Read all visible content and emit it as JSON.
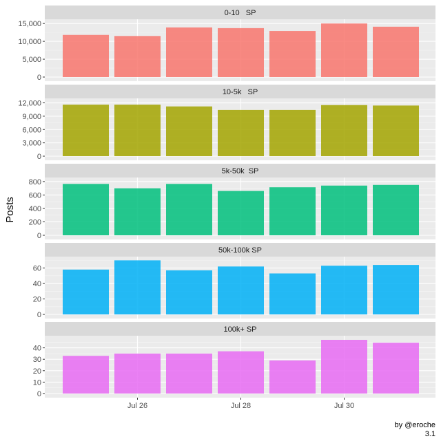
{
  "chart_data": {
    "type": "bar",
    "ylabel": "Posts",
    "x_ticks": [
      "Jul 26",
      "Jul 28",
      "Jul 30"
    ],
    "credit": "by @eroche",
    "version": "3.1",
    "panels": [
      {
        "strip": "0-10   SP",
        "color": "#F8766D",
        "values": [
          11800,
          11500,
          13900,
          13700,
          12900,
          15000,
          14100
        ],
        "ylim": [
          0,
          15800
        ],
        "ticks": [
          0,
          5000,
          10000,
          15000
        ],
        "tick_labels": [
          "0",
          "5,000",
          "10,000",
          "15,000"
        ]
      },
      {
        "strip": "10-5k   SP",
        "color": "#A3A500",
        "values": [
          11600,
          11600,
          11200,
          10400,
          10400,
          11500,
          11400
        ],
        "ylim": [
          0,
          12700
        ],
        "ticks": [
          0,
          3000,
          6000,
          9000,
          12000
        ],
        "tick_labels": [
          "0",
          "3,000",
          "6,000",
          "9,000",
          "12,000"
        ]
      },
      {
        "strip": "5k-50k  SP",
        "color": "#00BF7D",
        "values": [
          765,
          700,
          765,
          660,
          715,
          740,
          750
        ],
        "ylim": [
          0,
          840
        ],
        "ticks": [
          0,
          200,
          400,
          600,
          800
        ],
        "tick_labels": [
          "0",
          "200",
          "400",
          "600",
          "800"
        ]
      },
      {
        "strip": "50k-100k SP",
        "color": "#00B0F6",
        "values": [
          58,
          70,
          57,
          62,
          53,
          63,
          64
        ],
        "ylim": [
          0,
          73
        ],
        "ticks": [
          0,
          20,
          40,
          60
        ],
        "tick_labels": [
          "0",
          "20",
          "40",
          "60"
        ]
      },
      {
        "strip": "100k+ SP",
        "color": "#E76BF3",
        "values": [
          33,
          35,
          35,
          37,
          29,
          47,
          44.5
        ],
        "ylim": [
          0,
          49.4
        ],
        "ticks": [
          0,
          10,
          20,
          30,
          40
        ],
        "tick_labels": [
          "0",
          "10",
          "20",
          "30",
          "40"
        ]
      }
    ]
  }
}
